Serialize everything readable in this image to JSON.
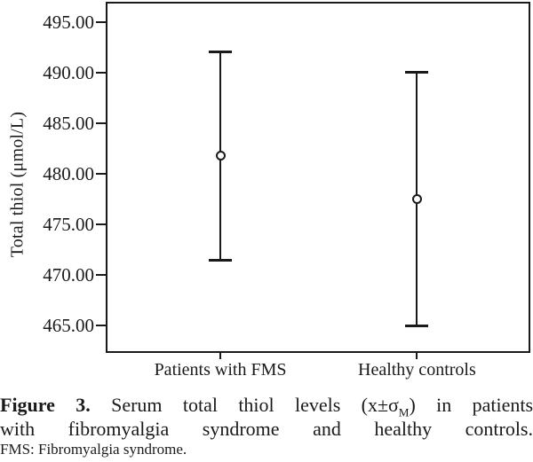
{
  "chart_data": {
    "type": "errorbar",
    "title": "",
    "xlabel": "",
    "ylabel": "Total thiol (μmol/L)",
    "categories": [
      "Patients with FMS",
      "Healthy controls"
    ],
    "points": [
      {
        "category": "Patients with FMS",
        "mean": 481.8,
        "upper": 492.0,
        "lower": 471.5
      },
      {
        "category": "Healthy controls",
        "mean": 477.5,
        "upper": 490.0,
        "lower": 465.0
      }
    ],
    "y_ticks": [
      "495.00",
      "490.00",
      "485.00",
      "480.00",
      "475.00",
      "470.00",
      "465.00"
    ],
    "y_tick_values": [
      495,
      490,
      485,
      480,
      475,
      470,
      465
    ],
    "ylim": [
      462.5,
      496.8
    ],
    "marker": "open-circle",
    "grid": false,
    "legend_position": "none"
  },
  "caption": {
    "figure_label": "Figure 3.",
    "line1_text": "Serum total thiol levels (x±σ",
    "line1_sub": "M",
    "line1_tail": ") in patients",
    "line2": "with fibromyalgia syndrome and healthy controls.",
    "footnote": "FMS: Fibromyalgia syndrome."
  },
  "colors": {
    "line": "#1a1a1a",
    "text": "#1a1a1a",
    "background": "#ffffff"
  }
}
